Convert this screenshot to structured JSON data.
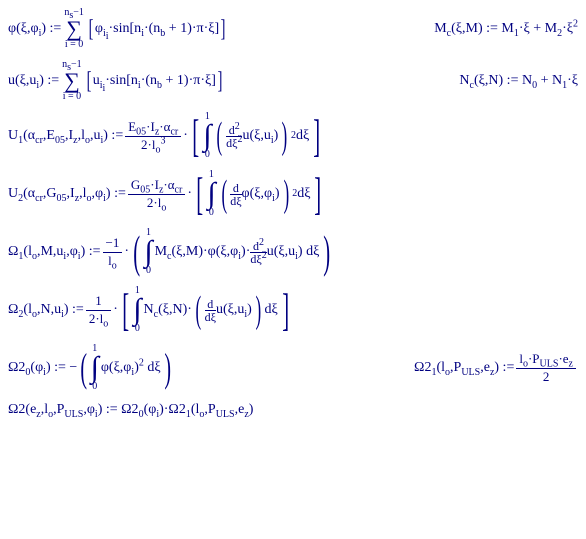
{
  "r1": {
    "lhs": "φ(ξ,φ<sub>i</sub>) := ",
    "sumTop": "n<sub>s</sub>−1",
    "sumBot": "i = 0",
    "body": "φ<sub>i<sub>i</sub></sub>·sin[n<sub>i</sub>·(n<sub>b</sub> + 1)·π·ξ]",
    "rhs": "M<sub>c</sub>(ξ,M) := M<sub>1</sub>·ξ + M<sub>2</sub>·ξ<sup>2</sup>"
  },
  "r2": {
    "lhs": "u(ξ,u<sub>i</sub>) := ",
    "sumTop": "n<sub>s</sub>−1",
    "sumBot": "i = 0",
    "body": "u<sub>i<sub>i</sub></sub>·sin[n<sub>i</sub>·(n<sub>b</sub> + 1)·π·ξ]",
    "rhs": "N<sub>c</sub>(ξ,N) := N<sub>0</sub> + N<sub>1</sub>·ξ"
  },
  "r3": {
    "lhs": "U<sub>1</sub>(α<sub>cr</sub>,E<sub>05</sub>,I<sub>z</sub>,l<sub>o</sub>,u<sub>i</sub>) := ",
    "fracNum": "E<sub>05</sub>·I<sub>z</sub>·α<sub>cr</sub>",
    "fracDen": "2·l<sub>o</sub><sup>3</sup>",
    "intTop": "1",
    "intBot": "0",
    "d2num": "d<sup>2</sup>",
    "d2den": "dξ<sup>2</sup>",
    "inner": "u(ξ,u<sub>i</sub>)",
    "sq": "2",
    "dxi": " dξ"
  },
  "r4": {
    "lhs": "U<sub>2</sub>(α<sub>cr</sub>,G<sub>05</sub>,I<sub>z</sub>,l<sub>o</sub>,φ<sub>i</sub>) := ",
    "fracNum": "G<sub>05</sub>·I<sub>z</sub>·α<sub>cr</sub>",
    "fracDen": "2·l<sub>o</sub>",
    "intTop": "1",
    "intBot": "0",
    "d1num": "d",
    "d1den": "dξ",
    "inner": "φ(ξ,φ<sub>i</sub>)",
    "sq": "2",
    "dxi": " dξ"
  },
  "r5": {
    "lhs": "Ω<sub>1</sub>(l<sub>o</sub>,M,u<sub>i</sub>,φ<sub>i</sub>) := ",
    "fracNum": "−1",
    "fracDen": "l<sub>o</sub>",
    "intTop": "1",
    "intBot": "0",
    "body1": "M<sub>c</sub>(ξ,M)·φ(ξ,φ<sub>i</sub>)·",
    "d2num": "d<sup>2</sup>",
    "d2den": "dξ<sup>2</sup>",
    "body2": "u(ξ,u<sub>i</sub>) dξ"
  },
  "r6": {
    "lhs": "Ω<sub>2</sub>(l<sub>o</sub>,N,u<sub>i</sub>) := ",
    "fracNum": "1",
    "fracDen": "2·l<sub>o</sub>",
    "intTop": "1",
    "intBot": "0",
    "body1": "N<sub>c</sub>(ξ,N)·",
    "d1num": "d",
    "d1den": "dξ",
    "body2": "u(ξ,u<sub>i</sub>)",
    "dxi": " dξ"
  },
  "r7": {
    "lhs": "Ω2<sub>0</sub>(φ<sub>i</sub>) := −",
    "intTop": "1",
    "intBot": "0",
    "body": "φ(ξ,φ<sub>i</sub>)<sup>2</sup> dξ",
    "rhsL": "Ω2<sub>1</sub>(l<sub>o</sub>,P<sub>ULS</sub>,e<sub>z</sub>) := ",
    "rfracNum": "l<sub>o</sub>·P<sub>ULS</sub>·e<sub>z</sub>",
    "rfracDen": "2"
  },
  "r8": {
    "body": "Ω2(e<sub>z</sub>,l<sub>o</sub>,P<sub>ULS</sub>,φ<sub>i</sub>) := Ω2<sub>0</sub>(φ<sub>i</sub>)·Ω2<sub>1</sub>(l<sub>o</sub>,P<sub>ULS</sub>,e<sub>z</sub>)"
  }
}
